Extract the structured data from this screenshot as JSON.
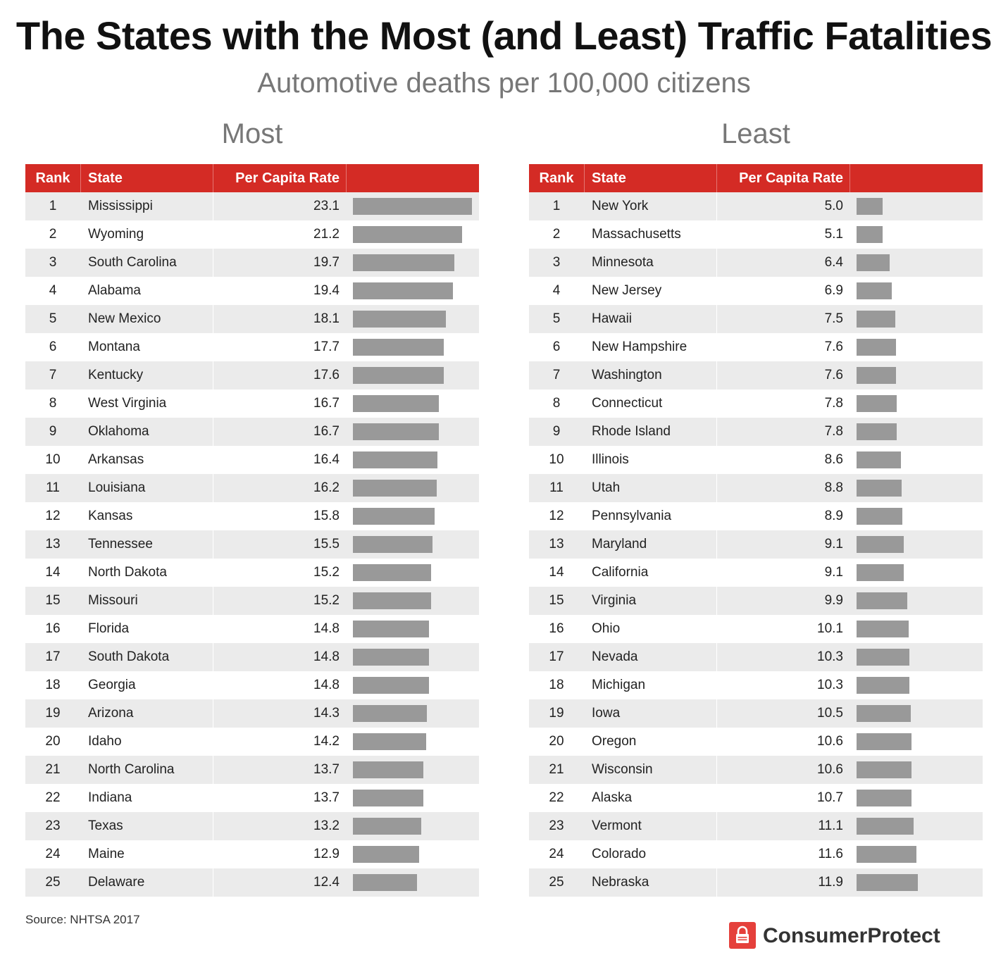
{
  "title": "The States with the Most (and Least) Traffic Fatalities",
  "subtitle": "Automotive deaths per 100,000 citizens",
  "colors": {
    "header": "#d42b25",
    "bar": "#999999",
    "stripe": "#ebebeb"
  },
  "columns": {
    "rank": "Rank",
    "state": "State",
    "rate": "Per Capita Rate"
  },
  "source": "Source: NHTSA 2017",
  "brand": "ConsumerProtect",
  "brand_icon": "lock-icon",
  "chart_data": [
    {
      "type": "bar",
      "title": "Most",
      "xlim": [
        0,
        23.1
      ],
      "ranks": [
        1,
        2,
        3,
        4,
        5,
        6,
        7,
        8,
        9,
        10,
        11,
        12,
        13,
        14,
        15,
        16,
        17,
        18,
        19,
        20,
        21,
        22,
        23,
        24,
        25
      ],
      "categories": [
        "Mississippi",
        "Wyoming",
        "South Carolina",
        "Alabama",
        "New Mexico",
        "Montana",
        "Kentucky",
        "West Virginia",
        "Oklahoma",
        "Arkansas",
        "Louisiana",
        "Kansas",
        "Tennessee",
        "North Dakota",
        "Missouri",
        "Florida",
        "South Dakota",
        "Georgia",
        "Arizona",
        "Idaho",
        "North Carolina",
        "Indiana",
        "Texas",
        "Maine",
        "Delaware"
      ],
      "values": [
        23.1,
        21.2,
        19.7,
        19.4,
        18.1,
        17.7,
        17.6,
        16.7,
        16.7,
        16.4,
        16.2,
        15.8,
        15.5,
        15.2,
        15.2,
        14.8,
        14.8,
        14.8,
        14.3,
        14.2,
        13.7,
        13.7,
        13.2,
        12.9,
        12.4
      ],
      "labels": [
        "23.1",
        "21.2",
        "19.7",
        "19.4",
        "18.1",
        "17.7",
        "17.6",
        "16.7",
        "16.7",
        "16.4",
        "16.2",
        "15.8",
        "15.5",
        "15.2",
        "15.2",
        "14.8",
        "14.8",
        "14.8",
        "14.3",
        "14.2",
        "13.7",
        "13.7",
        "13.2",
        "12.9",
        "12.4"
      ]
    },
    {
      "type": "bar",
      "title": "Least",
      "xlim": [
        0,
        23.1
      ],
      "ranks": [
        1,
        2,
        3,
        4,
        5,
        6,
        7,
        8,
        9,
        10,
        11,
        12,
        13,
        14,
        15,
        16,
        17,
        18,
        19,
        20,
        21,
        22,
        23,
        24,
        25
      ],
      "categories": [
        "New York",
        "Massachusetts",
        "Minnesota",
        "New Jersey",
        "Hawaii",
        "New Hampshire",
        "Washington",
        "Connecticut",
        "Rhode Island",
        "Illinois",
        "Utah",
        "Pennsylvania",
        "Maryland",
        "California",
        "Virginia",
        "Ohio",
        "Nevada",
        "Michigan",
        "Iowa",
        "Oregon",
        "Wisconsin",
        "Alaska",
        "Vermont",
        "Colorado",
        "Nebraska"
      ],
      "values": [
        5.0,
        5.1,
        6.4,
        6.9,
        7.5,
        7.6,
        7.6,
        7.8,
        7.8,
        8.6,
        8.8,
        8.9,
        9.1,
        9.1,
        9.9,
        10.1,
        10.3,
        10.3,
        10.5,
        10.6,
        10.6,
        10.7,
        11.1,
        11.6,
        11.9
      ],
      "labels": [
        "5.0",
        "5.1",
        "6.4",
        "6.9",
        "7.5",
        "7.6",
        "7.6",
        "7.8",
        "7.8",
        "8.6",
        "8.8",
        "8.9",
        "9.1",
        "9.1",
        "9.9",
        "10.1",
        "10.3",
        "10.3",
        "10.5",
        "10.6",
        "10.6",
        "10.7",
        "11.1",
        "11.6",
        "11.9"
      ]
    }
  ]
}
